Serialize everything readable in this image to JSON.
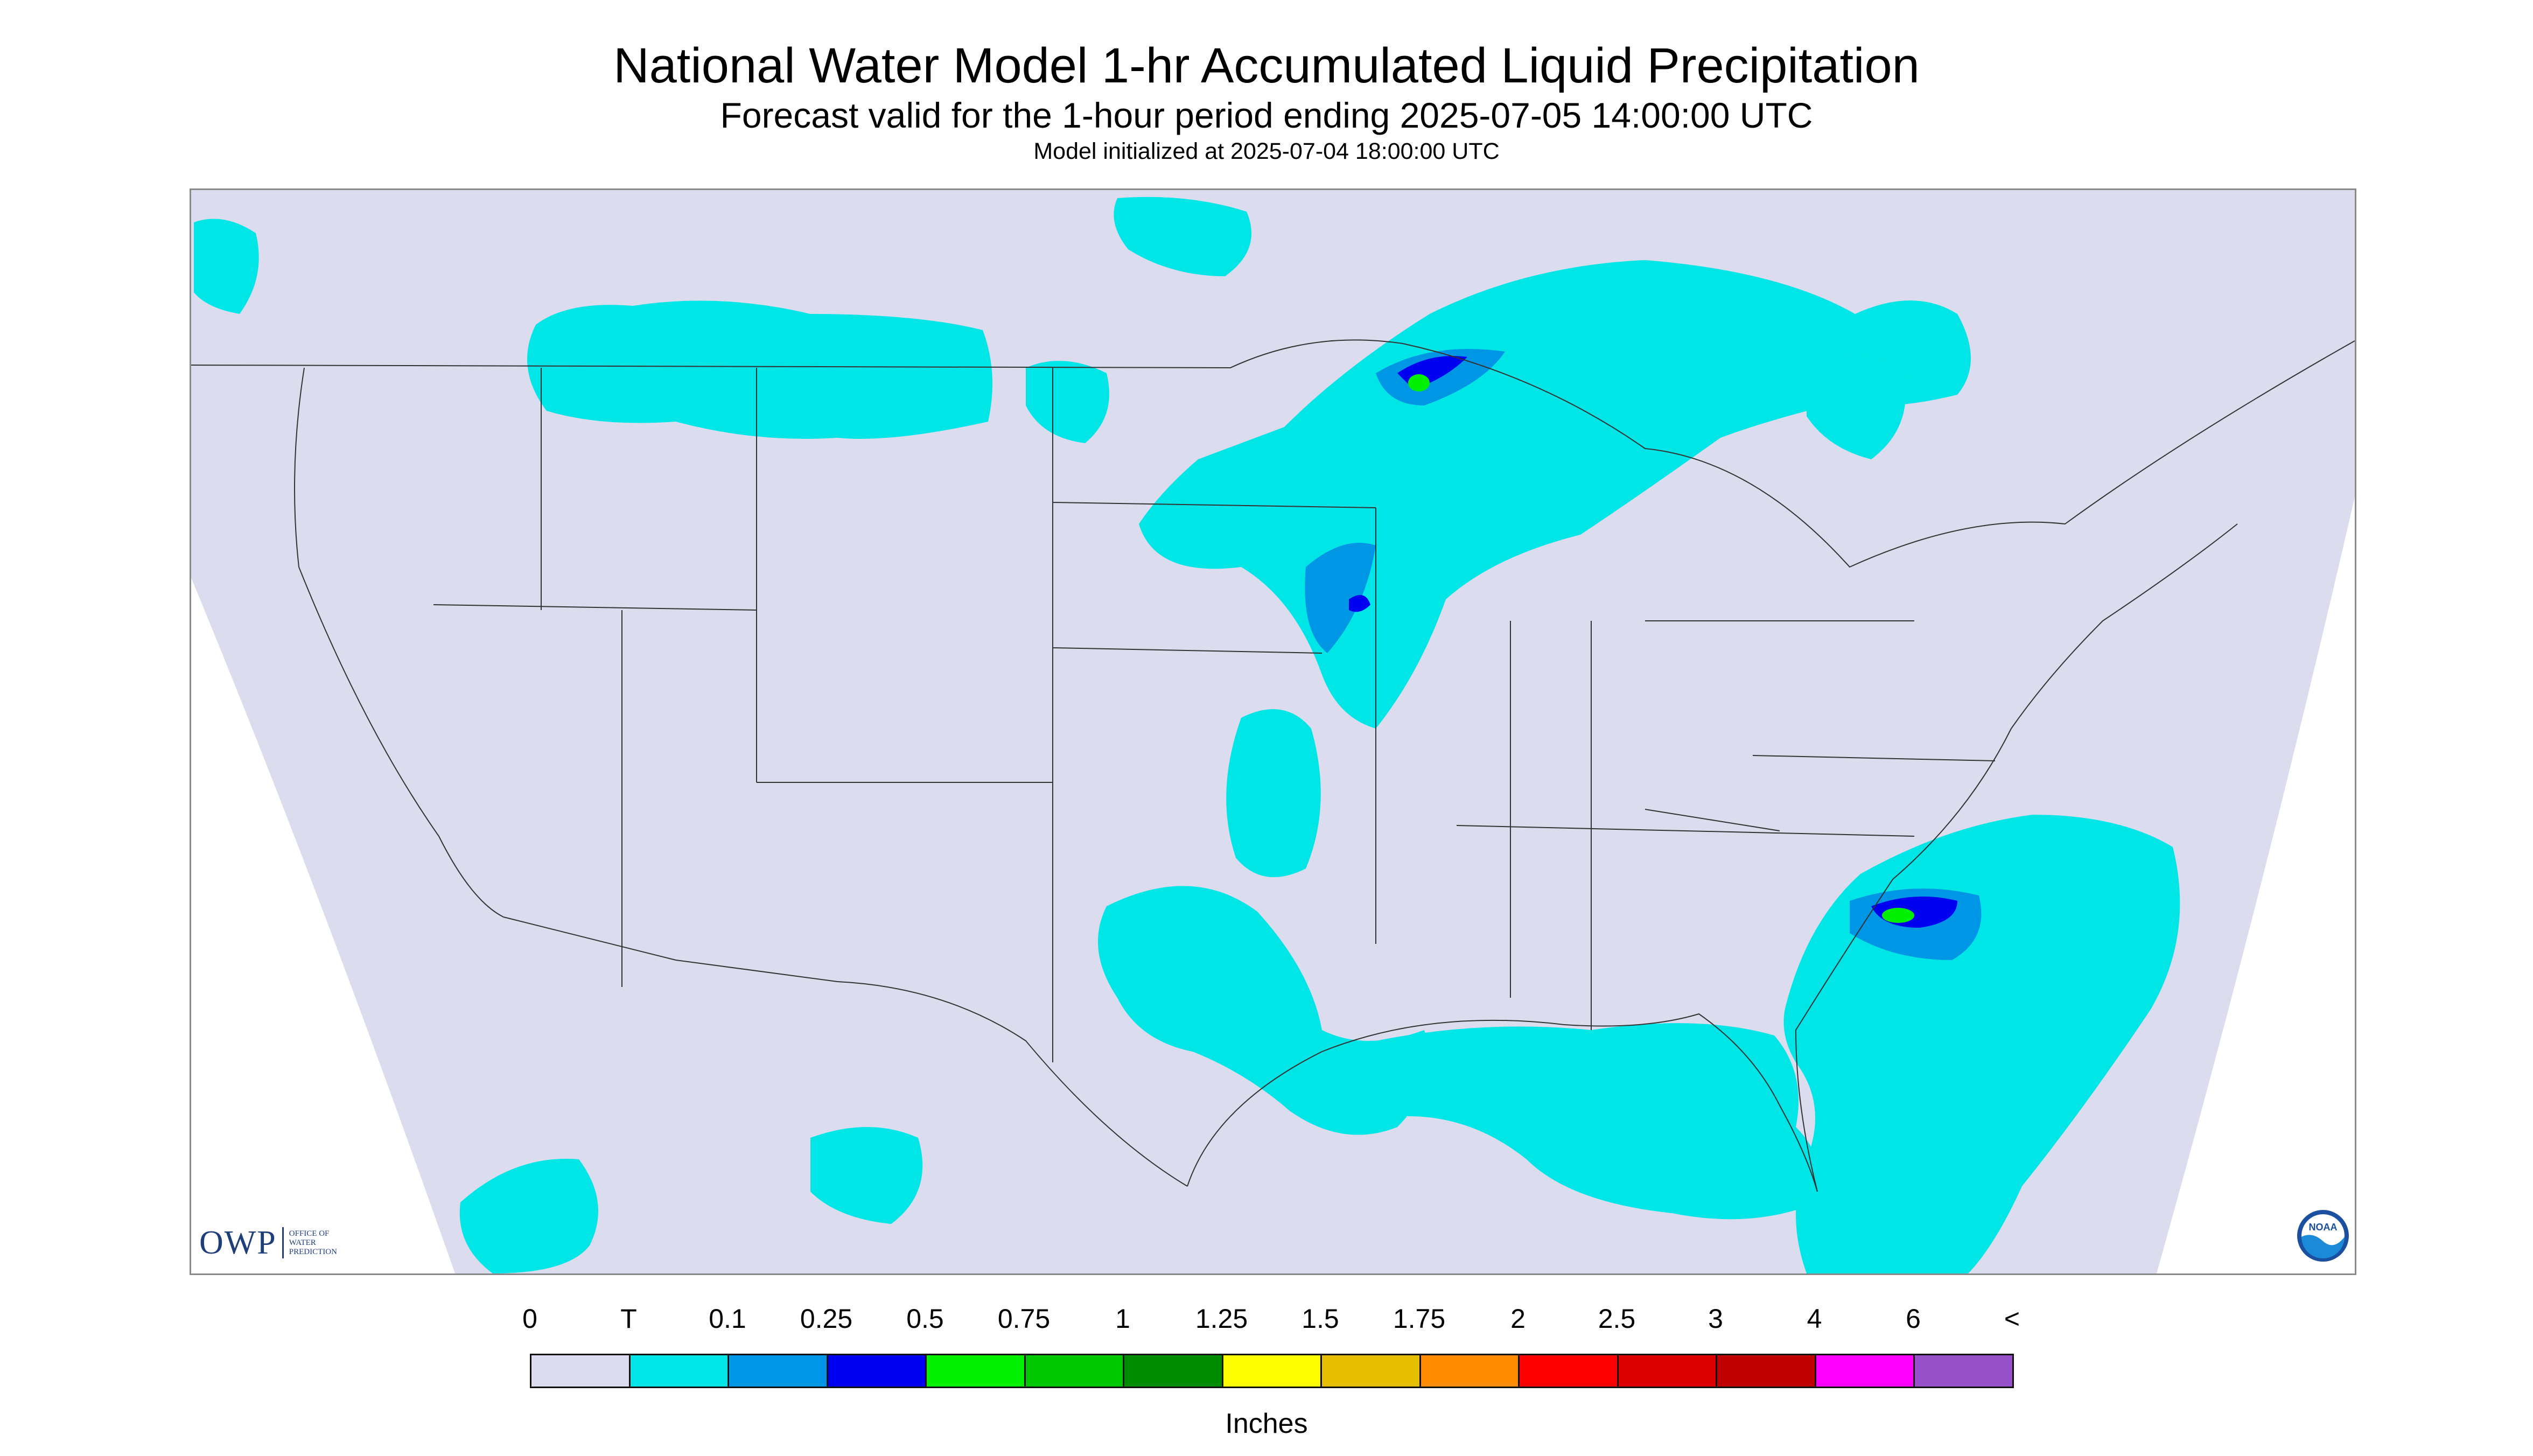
{
  "header": {
    "title": "National Water Model 1-hr Accumulated Liquid Precipitation",
    "subtitle": "Forecast valid for the 1-hour period ending 2025-07-05 14:00:00 UTC",
    "init_line": "Model initialized at 2025-07-04 18:00:00 UTC"
  },
  "map": {
    "background_color": "#dcdcef",
    "boundary_color": "#333333",
    "logos": {
      "owp": {
        "big": "OWP",
        "small_lines": [
          "OFFICE OF",
          "WATER",
          "PREDICTION"
        ]
      },
      "noaa": {
        "text": "NOAA"
      }
    }
  },
  "legend": {
    "labels": [
      "0",
      "T",
      "0.1",
      "0.25",
      "0.5",
      "0.75",
      "1",
      "1.25",
      "1.5",
      "1.75",
      "2",
      "2.5",
      "3",
      "4",
      "6",
      "<"
    ],
    "colors": [
      "#dcdcef",
      "#00e5e5",
      "#0096e6",
      "#0000f0",
      "#00f000",
      "#00c800",
      "#008c00",
      "#ffff00",
      "#e6be00",
      "#ff8c00",
      "#ff0000",
      "#dc0000",
      "#be0000",
      "#ff00ff",
      "#9650c8"
    ],
    "units": "Inches"
  }
}
